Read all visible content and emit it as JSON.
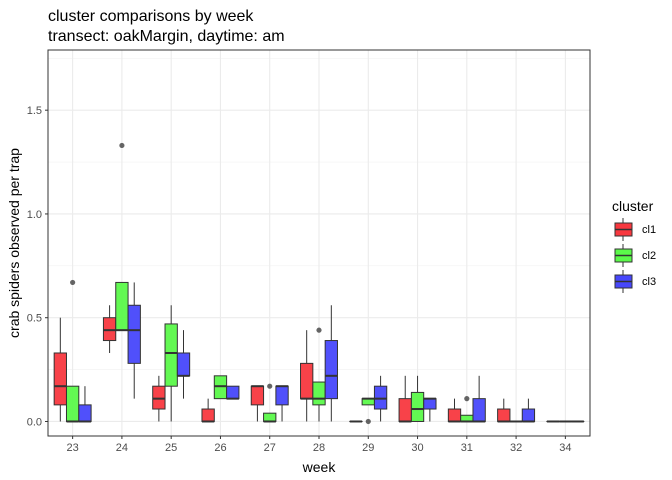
{
  "chart_data": {
    "type": "boxplot",
    "title": "cluster comparisons by week",
    "subtitle": "transect: oakMargin, daytime: am",
    "xlabel": "week",
    "ylabel": "crab spiders observed per trap",
    "categories": [
      "23",
      "24",
      "25",
      "26",
      "27",
      "28",
      "29",
      "30",
      "31",
      "32",
      "34"
    ],
    "yticks": [
      0.0,
      0.5,
      1.0,
      1.5
    ],
    "ytick_labels": [
      "0.0",
      "0.5",
      "1.0",
      "1.5"
    ],
    "ylim": [
      -0.07,
      1.79
    ],
    "grid": true,
    "legend": {
      "title": "cluster",
      "position": "right"
    },
    "series": [
      {
        "name": "cl1",
        "color": "#f8383f",
        "boxes": [
          {
            "week": "23",
            "min": 0.0,
            "q1": 0.08,
            "median": 0.17,
            "q3": 0.33,
            "max": 0.5,
            "outliers": []
          },
          {
            "week": "24",
            "min": 0.33,
            "q1": 0.39,
            "median": 0.44,
            "q3": 0.5,
            "max": 0.56,
            "outliers": []
          },
          {
            "week": "25",
            "min": 0.0,
            "q1": 0.06,
            "median": 0.11,
            "q3": 0.17,
            "max": 0.22,
            "outliers": []
          },
          {
            "week": "26",
            "min": 0.0,
            "q1": 0.0,
            "median": 0.0,
            "q3": 0.06,
            "max": 0.11,
            "outliers": []
          },
          {
            "week": "27",
            "min": 0.0,
            "q1": 0.08,
            "median": 0.17,
            "q3": 0.17,
            "max": 0.17,
            "outliers": []
          },
          {
            "week": "28",
            "min": 0.0,
            "q1": 0.11,
            "median": 0.11,
            "q3": 0.28,
            "max": 0.44,
            "outliers": []
          },
          {
            "week": "29",
            "min": 0.0,
            "q1": 0.0,
            "median": 0.0,
            "q3": 0.0,
            "max": 0.0,
            "outliers": []
          },
          {
            "week": "30",
            "min": 0.0,
            "q1": 0.0,
            "median": 0.0,
            "q3": 0.11,
            "max": 0.22,
            "outliers": []
          },
          {
            "week": "31",
            "min": 0.0,
            "q1": 0.0,
            "median": 0.0,
            "q3": 0.06,
            "max": 0.11,
            "outliers": []
          },
          {
            "week": "32",
            "min": 0.0,
            "q1": 0.0,
            "median": 0.0,
            "q3": 0.06,
            "max": 0.11,
            "outliers": []
          },
          {
            "week": "34",
            "min": 0.0,
            "q1": 0.0,
            "median": 0.0,
            "q3": 0.0,
            "max": 0.0,
            "outliers": []
          }
        ]
      },
      {
        "name": "cl2",
        "color": "#5bf94a",
        "boxes": [
          {
            "week": "23",
            "min": 0.0,
            "q1": 0.0,
            "median": 0.0,
            "q3": 0.17,
            "max": 0.17,
            "outliers": [
              0.67
            ]
          },
          {
            "week": "24",
            "min": 0.44,
            "q1": 0.44,
            "median": 0.44,
            "q3": 0.67,
            "max": 0.67,
            "outliers": [
              1.33
            ]
          },
          {
            "week": "25",
            "min": 0.0,
            "q1": 0.17,
            "median": 0.33,
            "q3": 0.47,
            "max": 0.56,
            "outliers": []
          },
          {
            "week": "26",
            "min": 0.11,
            "q1": 0.11,
            "median": 0.17,
            "q3": 0.22,
            "max": 0.22,
            "outliers": []
          },
          {
            "week": "27",
            "min": 0.0,
            "q1": 0.0,
            "median": 0.0,
            "q3": 0.04,
            "max": 0.04,
            "outliers": [
              0.17
            ]
          },
          {
            "week": "28",
            "min": 0.0,
            "q1": 0.08,
            "median": 0.11,
            "q3": 0.19,
            "max": 0.19,
            "outliers": [
              0.44
            ]
          },
          {
            "week": "29",
            "min": 0.08,
            "q1": 0.08,
            "median": 0.11,
            "q3": 0.11,
            "max": 0.11,
            "outliers": [
              0.0
            ]
          },
          {
            "week": "30",
            "min": 0.0,
            "q1": 0.0,
            "median": 0.06,
            "q3": 0.14,
            "max": 0.22,
            "outliers": []
          },
          {
            "week": "31",
            "min": 0.0,
            "q1": 0.0,
            "median": 0.0,
            "q3": 0.03,
            "max": 0.03,
            "outliers": [
              0.11
            ]
          },
          {
            "week": "32",
            "min": 0.0,
            "q1": 0.0,
            "median": 0.0,
            "q3": 0.0,
            "max": 0.0,
            "outliers": []
          },
          {
            "week": "34",
            "min": 0.0,
            "q1": 0.0,
            "median": 0.0,
            "q3": 0.0,
            "max": 0.0,
            "outliers": []
          }
        ]
      },
      {
        "name": "cl3",
        "color": "#4747fb",
        "boxes": [
          {
            "week": "23",
            "min": 0.0,
            "q1": 0.0,
            "median": 0.0,
            "q3": 0.08,
            "max": 0.17,
            "outliers": []
          },
          {
            "week": "24",
            "min": 0.11,
            "q1": 0.28,
            "median": 0.44,
            "q3": 0.56,
            "max": 0.67,
            "outliers": []
          },
          {
            "week": "25",
            "min": 0.11,
            "q1": 0.22,
            "median": 0.22,
            "q3": 0.33,
            "max": 0.44,
            "outliers": []
          },
          {
            "week": "26",
            "min": 0.11,
            "q1": 0.11,
            "median": 0.11,
            "q3": 0.17,
            "max": 0.17,
            "outliers": []
          },
          {
            "week": "27",
            "min": 0.0,
            "q1": 0.08,
            "median": 0.17,
            "q3": 0.17,
            "max": 0.17,
            "outliers": []
          },
          {
            "week": "28",
            "min": 0.0,
            "q1": 0.11,
            "median": 0.22,
            "q3": 0.39,
            "max": 0.56,
            "outliers": []
          },
          {
            "week": "29",
            "min": 0.0,
            "q1": 0.06,
            "median": 0.11,
            "q3": 0.17,
            "max": 0.22,
            "outliers": []
          },
          {
            "week": "30",
            "min": 0.0,
            "q1": 0.06,
            "median": 0.11,
            "q3": 0.11,
            "max": 0.11,
            "outliers": []
          },
          {
            "week": "31",
            "min": 0.0,
            "q1": 0.0,
            "median": 0.0,
            "q3": 0.11,
            "max": 0.22,
            "outliers": []
          },
          {
            "week": "32",
            "min": 0.0,
            "q1": 0.0,
            "median": 0.0,
            "q3": 0.06,
            "max": 0.11,
            "outliers": []
          },
          {
            "week": "34",
            "min": 0.0,
            "q1": 0.0,
            "median": 0.0,
            "q3": 0.0,
            "max": 0.0,
            "outliers": []
          }
        ]
      }
    ]
  }
}
